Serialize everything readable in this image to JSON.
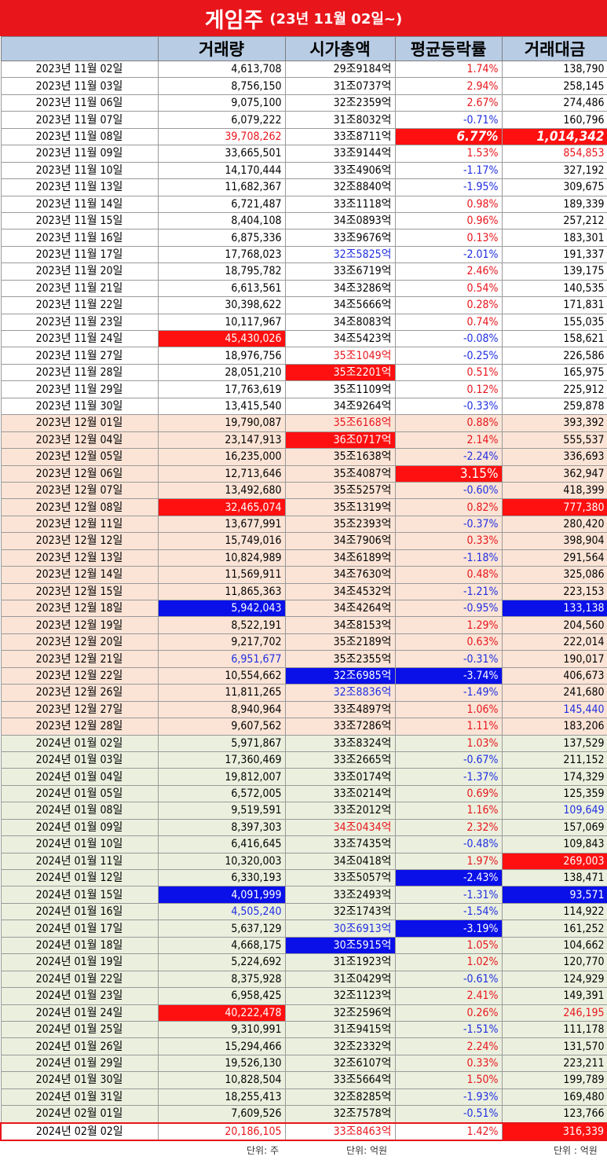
{
  "title": {
    "main": "게임주",
    "sub": "(23년 11월 02일~)"
  },
  "headers": [
    "",
    "거래량",
    "시가총액",
    "평균등락률",
    "거래대금"
  ],
  "rows": [
    {
      "d": "2023년 11월 02일",
      "v": "4,613,708",
      "m": "29조9184억",
      "r": "1.74%",
      "t": "138,790",
      "g": 1,
      "vs": "",
      "ms": "",
      "rs": "red",
      "ts": ""
    },
    {
      "d": "2023년 11월 03일",
      "v": "8,756,150",
      "m": "31조0737억",
      "r": "2.94%",
      "t": "258,145",
      "g": 1,
      "vs": "",
      "ms": "",
      "rs": "red",
      "ts": ""
    },
    {
      "d": "2023년 11월 06일",
      "v": "9,075,100",
      "m": "32조2359억",
      "r": "2.67%",
      "t": "274,486",
      "g": 1,
      "vs": "",
      "ms": "",
      "rs": "red",
      "ts": ""
    },
    {
      "d": "2023년 11월 07일",
      "v": "6,079,222",
      "m": "31조8032억",
      "r": "-0.71%",
      "t": "160,796",
      "g": 1,
      "vs": "",
      "ms": "",
      "rs": "blue",
      "ts": ""
    },
    {
      "d": "2023년 11월 08일",
      "v": "39,708,262",
      "m": "33조8711억",
      "r": "6.77%",
      "t": "1,014,342",
      "g": 1,
      "vs": "red",
      "ms": "",
      "rs": "hr big",
      "ts": "hr big"
    },
    {
      "d": "2023년 11월 09일",
      "v": "33,665,501",
      "m": "33조9144억",
      "r": "1.53%",
      "t": "854,853",
      "g": 1,
      "vs": "",
      "ms": "",
      "rs": "red",
      "ts": "red"
    },
    {
      "d": "2023년 11월 10일",
      "v": "14,170,444",
      "m": "33조4906억",
      "r": "-1.17%",
      "t": "327,192",
      "g": 1,
      "vs": "",
      "ms": "",
      "rs": "blue",
      "ts": ""
    },
    {
      "d": "2023년 11월 13일",
      "v": "11,682,367",
      "m": "32조8840억",
      "r": "-1.95%",
      "t": "309,675",
      "g": 1,
      "vs": "",
      "ms": "",
      "rs": "blue",
      "ts": ""
    },
    {
      "d": "2023년 11월 14일",
      "v": "6,721,487",
      "m": "33조1118억",
      "r": "0.98%",
      "t": "189,339",
      "g": 1,
      "vs": "",
      "ms": "",
      "rs": "red",
      "ts": ""
    },
    {
      "d": "2023년 11월 15일",
      "v": "8,404,108",
      "m": "34조0893억",
      "r": "0.96%",
      "t": "257,212",
      "g": 1,
      "vs": "",
      "ms": "",
      "rs": "red",
      "ts": ""
    },
    {
      "d": "2023년 11월 16일",
      "v": "6,875,336",
      "m": "33조9676억",
      "r": "0.13%",
      "t": "183,301",
      "g": 1,
      "vs": "",
      "ms": "",
      "rs": "red",
      "ts": ""
    },
    {
      "d": "2023년 11월 17일",
      "v": "17,768,023",
      "m": "32조5825억",
      "r": "-2.01%",
      "t": "191,337",
      "g": 1,
      "vs": "",
      "ms": "blue",
      "rs": "blue",
      "ts": ""
    },
    {
      "d": "2023년 11월 20일",
      "v": "18,795,782",
      "m": "33조6719억",
      "r": "2.46%",
      "t": "139,175",
      "g": 1,
      "vs": "",
      "ms": "",
      "rs": "red",
      "ts": ""
    },
    {
      "d": "2023년 11월 21일",
      "v": "6,613,561",
      "m": "34조3286억",
      "r": "0.54%",
      "t": "140,535",
      "g": 1,
      "vs": "",
      "ms": "",
      "rs": "red",
      "ts": ""
    },
    {
      "d": "2023년 11월 22일",
      "v": "30,398,622",
      "m": "34조5666억",
      "r": "0.28%",
      "t": "171,831",
      "g": 1,
      "vs": "",
      "ms": "",
      "rs": "red",
      "ts": ""
    },
    {
      "d": "2023년 11월 23일",
      "v": "10,117,967",
      "m": "34조8083억",
      "r": "0.74%",
      "t": "155,035",
      "g": 1,
      "vs": "",
      "ms": "",
      "rs": "red",
      "ts": ""
    },
    {
      "d": "2023년 11월 24일",
      "v": "45,430,026",
      "m": "34조5423억",
      "r": "-0.08%",
      "t": "158,621",
      "g": 1,
      "vs": "hr",
      "ms": "",
      "rs": "blue",
      "ts": ""
    },
    {
      "d": "2023년 11월 27일",
      "v": "18,976,756",
      "m": "35조1049억",
      "r": "-0.25%",
      "t": "226,586",
      "g": 1,
      "vs": "",
      "ms": "red",
      "rs": "blue",
      "ts": ""
    },
    {
      "d": "2023년 11월 28일",
      "v": "28,051,210",
      "m": "35조2201억",
      "r": "0.51%",
      "t": "165,975",
      "g": 1,
      "vs": "",
      "ms": "hr",
      "rs": "red",
      "ts": ""
    },
    {
      "d": "2023년 11월 29일",
      "v": "17,763,619",
      "m": "35조1109억",
      "r": "0.12%",
      "t": "225,912",
      "g": 1,
      "vs": "",
      "ms": "",
      "rs": "red",
      "ts": ""
    },
    {
      "d": "2023년 11월 30일",
      "v": "13,415,540",
      "m": "34조9264억",
      "r": "-0.33%",
      "t": "259,878",
      "g": 1,
      "vs": "",
      "ms": "",
      "rs": "blue",
      "ts": ""
    },
    {
      "d": "2023년 12월 01일",
      "v": "19,790,087",
      "m": "35조6168억",
      "r": "0.88%",
      "t": "393,392",
      "g": 2,
      "vs": "",
      "ms": "red",
      "rs": "red",
      "ts": ""
    },
    {
      "d": "2023년 12월 04일",
      "v": "23,147,913",
      "m": "36조0717억",
      "r": "2.14%",
      "t": "555,537",
      "g": 2,
      "vs": "",
      "ms": "hr",
      "rs": "red",
      "ts": ""
    },
    {
      "d": "2023년 12월 05일",
      "v": "16,235,000",
      "m": "35조1638억",
      "r": "-2.24%",
      "t": "336,693",
      "g": 2,
      "vs": "",
      "ms": "",
      "rs": "blue",
      "ts": ""
    },
    {
      "d": "2023년 12월 06일",
      "v": "12,713,646",
      "m": "35조4087억",
      "r": "3.15%",
      "t": "362,947",
      "g": 2,
      "vs": "",
      "ms": "",
      "rs": "hr big2",
      "ts": ""
    },
    {
      "d": "2023년 12월 07일",
      "v": "13,492,680",
      "m": "35조5257억",
      "r": "-0.60%",
      "t": "418,399",
      "g": 2,
      "vs": "",
      "ms": "",
      "rs": "blue",
      "ts": ""
    },
    {
      "d": "2023년 12월 08일",
      "v": "32,465,074",
      "m": "35조1319억",
      "r": "0.82%",
      "t": "777,380",
      "g": 2,
      "vs": "hr",
      "ms": "",
      "rs": "red",
      "ts": "hr"
    },
    {
      "d": "2023년 12월 11일",
      "v": "13,677,991",
      "m": "35조2393억",
      "r": "-0.37%",
      "t": "280,420",
      "g": 2,
      "vs": "",
      "ms": "",
      "rs": "blue",
      "ts": ""
    },
    {
      "d": "2023년 12월 12일",
      "v": "15,749,016",
      "m": "34조7906억",
      "r": "0.33%",
      "t": "398,904",
      "g": 2,
      "vs": "",
      "ms": "",
      "rs": "red",
      "ts": ""
    },
    {
      "d": "2023년 12월 13일",
      "v": "10,824,989",
      "m": "34조6189억",
      "r": "-1.18%",
      "t": "291,564",
      "g": 2,
      "vs": "",
      "ms": "",
      "rs": "blue",
      "ts": ""
    },
    {
      "d": "2023년 12월 14일",
      "v": "11,569,911",
      "m": "34조7630억",
      "r": "0.48%",
      "t": "325,086",
      "g": 2,
      "vs": "",
      "ms": "",
      "rs": "red",
      "ts": ""
    },
    {
      "d": "2023년 12월 15일",
      "v": "11,865,363",
      "m": "34조4532억",
      "r": "-1.21%",
      "t": "223,153",
      "g": 2,
      "vs": "",
      "ms": "",
      "rs": "blue",
      "ts": ""
    },
    {
      "d": "2023년 12월 18일",
      "v": "5,942,043",
      "m": "34조4264억",
      "r": "-0.95%",
      "t": "133,138",
      "g": 2,
      "vs": "hb",
      "ms": "",
      "rs": "blue",
      "ts": "hb"
    },
    {
      "d": "2023년 12월 19일",
      "v": "8,522,191",
      "m": "34조8153억",
      "r": "1.29%",
      "t": "204,560",
      "g": 2,
      "vs": "",
      "ms": "",
      "rs": "red",
      "ts": ""
    },
    {
      "d": "2023년 12월 20일",
      "v": "9,217,702",
      "m": "35조2189억",
      "r": "0.63%",
      "t": "222,014",
      "g": 2,
      "vs": "",
      "ms": "",
      "rs": "red",
      "ts": ""
    },
    {
      "d": "2023년 12월 21일",
      "v": "6,951,677",
      "m": "35조2355억",
      "r": "-0.31%",
      "t": "190,017",
      "g": 2,
      "vs": "blue",
      "ms": "",
      "rs": "blue",
      "ts": ""
    },
    {
      "d": "2023년 12월 22일",
      "v": "10,554,662",
      "m": "32조6985억",
      "r": "-3.74%",
      "t": "406,673",
      "g": 2,
      "vs": "",
      "ms": "hb",
      "rs": "hb",
      "ts": ""
    },
    {
      "d": "2023년 12월 26일",
      "v": "11,811,265",
      "m": "32조8836억",
      "r": "-1.49%",
      "t": "241,680",
      "g": 2,
      "vs": "",
      "ms": "blue",
      "rs": "blue",
      "ts": ""
    },
    {
      "d": "2023년 12월 27일",
      "v": "8,940,964",
      "m": "33조4897억",
      "r": "1.06%",
      "t": "145,440",
      "g": 2,
      "vs": "",
      "ms": "",
      "rs": "red",
      "ts": "blue"
    },
    {
      "d": "2023년 12월 28일",
      "v": "9,607,562",
      "m": "33조7286억",
      "r": "1.11%",
      "t": "183,206",
      "g": 2,
      "vs": "",
      "ms": "",
      "rs": "red",
      "ts": ""
    },
    {
      "d": "2024년 01월 02일",
      "v": "5,971,867",
      "m": "33조8324억",
      "r": "1.03%",
      "t": "137,529",
      "g": 3,
      "vs": "",
      "ms": "",
      "rs": "red",
      "ts": ""
    },
    {
      "d": "2024년 01월 03일",
      "v": "17,360,469",
      "m": "33조2665억",
      "r": "-0.67%",
      "t": "211,152",
      "g": 3,
      "vs": "",
      "ms": "",
      "rs": "blue",
      "ts": ""
    },
    {
      "d": "2024년 01월 04일",
      "v": "19,812,007",
      "m": "33조0174억",
      "r": "-1.37%",
      "t": "174,329",
      "g": 3,
      "vs": "",
      "ms": "",
      "rs": "blue",
      "ts": ""
    },
    {
      "d": "2024년 01월 05일",
      "v": "6,572,005",
      "m": "33조0214억",
      "r": "0.69%",
      "t": "125,359",
      "g": 3,
      "vs": "",
      "ms": "",
      "rs": "red",
      "ts": ""
    },
    {
      "d": "2024년 01월 08일",
      "v": "9,519,591",
      "m": "33조2012억",
      "r": "1.16%",
      "t": "109,649",
      "g": 3,
      "vs": "",
      "ms": "",
      "rs": "red",
      "ts": "blue"
    },
    {
      "d": "2024년 01월 09일",
      "v": "8,397,303",
      "m": "34조0434억",
      "r": "2.32%",
      "t": "157,069",
      "g": 3,
      "vs": "",
      "ms": "red",
      "rs": "red",
      "ts": ""
    },
    {
      "d": "2024년 01월 10일",
      "v": "6,416,645",
      "m": "33조7435억",
      "r": "-0.48%",
      "t": "109,843",
      "g": 3,
      "vs": "",
      "ms": "",
      "rs": "blue",
      "ts": ""
    },
    {
      "d": "2024년 01월 11일",
      "v": "10,320,003",
      "m": "34조0418억",
      "r": "1.97%",
      "t": "269,003",
      "g": 3,
      "vs": "",
      "ms": "",
      "rs": "red",
      "ts": "hr"
    },
    {
      "d": "2024년 01월 12일",
      "v": "6,330,193",
      "m": "33조5057억",
      "r": "-2.43%",
      "t": "138,471",
      "g": 3,
      "vs": "",
      "ms": "",
      "rs": "hb",
      "ts": ""
    },
    {
      "d": "2024년 01월 15일",
      "v": "4,091,999",
      "m": "33조2493억",
      "r": "-1.31%",
      "t": "93,571",
      "g": 3,
      "vs": "hb",
      "ms": "",
      "rs": "blue",
      "ts": "hb"
    },
    {
      "d": "2024년 01월 16일",
      "v": "4,505,240",
      "m": "32조1743억",
      "r": "-1.54%",
      "t": "114,922",
      "g": 3,
      "vs": "blue",
      "ms": "",
      "rs": "blue",
      "ts": ""
    },
    {
      "d": "2024년 01월 17일",
      "v": "5,637,129",
      "m": "30조6913억",
      "r": "-3.19%",
      "t": "161,252",
      "g": 3,
      "vs": "",
      "ms": "blue",
      "rs": "hb",
      "ts": ""
    },
    {
      "d": "2024년 01월 18일",
      "v": "4,668,175",
      "m": "30조5915억",
      "r": "1.05%",
      "t": "104,662",
      "g": 3,
      "vs": "",
      "ms": "hb",
      "rs": "red",
      "ts": ""
    },
    {
      "d": "2024년 01월 19일",
      "v": "5,224,692",
      "m": "31조1923억",
      "r": "1.02%",
      "t": "120,770",
      "g": 3,
      "vs": "",
      "ms": "",
      "rs": "red",
      "ts": ""
    },
    {
      "d": "2024년 01월 22일",
      "v": "8,375,928",
      "m": "31조0429억",
      "r": "-0.61%",
      "t": "124,929",
      "g": 3,
      "vs": "",
      "ms": "",
      "rs": "blue",
      "ts": ""
    },
    {
      "d": "2024년 01월 23일",
      "v": "6,958,425",
      "m": "32조1123억",
      "r": "2.41%",
      "t": "149,391",
      "g": 3,
      "vs": "",
      "ms": "",
      "rs": "red",
      "ts": ""
    },
    {
      "d": "2024년 01월 24일",
      "v": "40,222,478",
      "m": "32조2596억",
      "r": "0.26%",
      "t": "246,195",
      "g": 3,
      "vs": "hr",
      "ms": "",
      "rs": "red",
      "ts": "red"
    },
    {
      "d": "2024년 01월 25일",
      "v": "9,310,991",
      "m": "31조9415억",
      "r": "-1.51%",
      "t": "111,178",
      "g": 3,
      "vs": "",
      "ms": "",
      "rs": "blue",
      "ts": ""
    },
    {
      "d": "2024년 01월 26일",
      "v": "15,294,466",
      "m": "32조2332억",
      "r": "2.24%",
      "t": "131,570",
      "g": 3,
      "vs": "",
      "ms": "",
      "rs": "red",
      "ts": ""
    },
    {
      "d": "2024년 01월 29일",
      "v": "19,526,130",
      "m": "32조6107억",
      "r": "0.33%",
      "t": "223,211",
      "g": 3,
      "vs": "",
      "ms": "",
      "rs": "red",
      "ts": ""
    },
    {
      "d": "2024년 01월 30일",
      "v": "10,828,504",
      "m": "33조5664억",
      "r": "1.50%",
      "t": "199,789",
      "g": 3,
      "vs": "",
      "ms": "",
      "rs": "red",
      "ts": ""
    },
    {
      "d": "2024년 01월 31일",
      "v": "18,255,413",
      "m": "32조8285억",
      "r": "-1.93%",
      "t": "169,480",
      "g": 3,
      "vs": "",
      "ms": "",
      "rs": "blue",
      "ts": ""
    },
    {
      "d": "2024년 02월 01일",
      "v": "7,609,526",
      "m": "32조7578억",
      "r": "-0.51%",
      "t": "123,766",
      "g": 3,
      "vs": "",
      "ms": "",
      "rs": "blue",
      "ts": ""
    },
    {
      "d": "2024년 02월 02일",
      "v": "20,186,105",
      "m": "33조8463억",
      "r": "1.42%",
      "t": "316,339",
      "g": 1,
      "vs": "red",
      "ms": "red",
      "rs": "red",
      "ts": "hr",
      "last": true
    }
  ],
  "units": {
    "volume": "단위: 주",
    "cap": "단위: 억원",
    "amount": "단위 : 억원"
  },
  "colors": {
    "title_bg": "#e8151b",
    "header_bg": "#b8cce4",
    "nov_bg": "#ffffff",
    "dec_bg": "#fbe4d6",
    "jan_bg": "#ebf0de",
    "up": "#e8151b",
    "down": "#1f2ee0"
  }
}
